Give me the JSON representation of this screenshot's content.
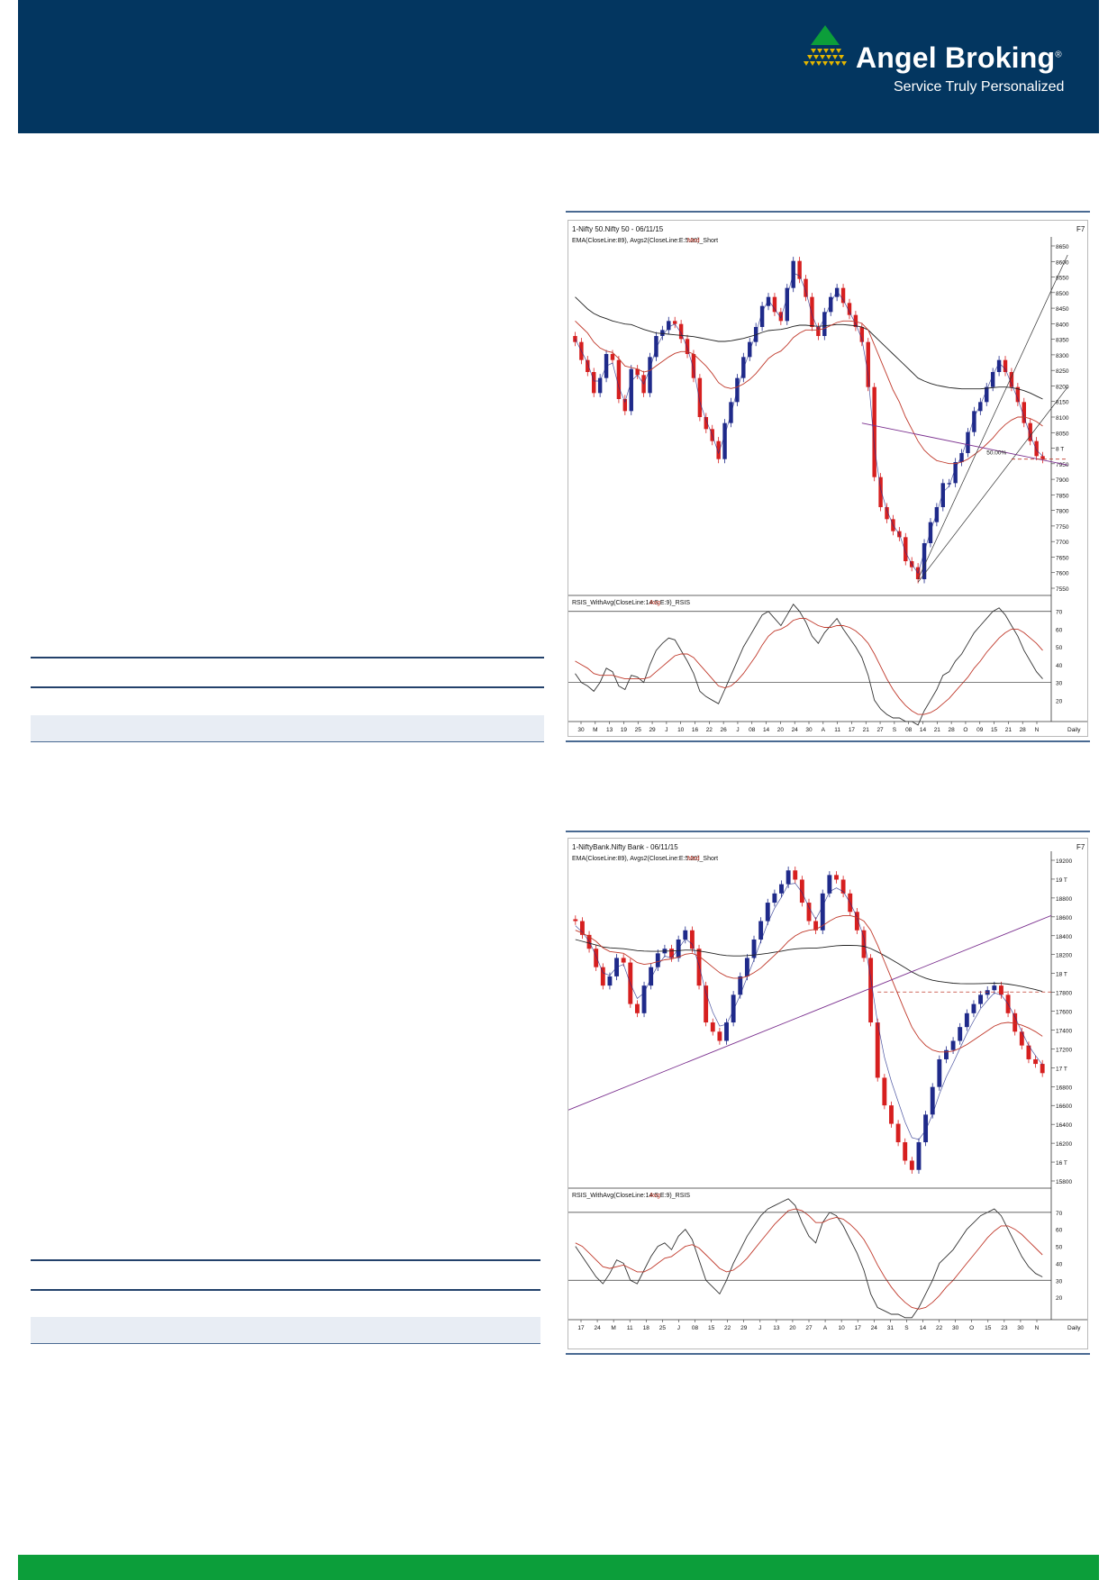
{
  "brand": {
    "name": "Angel Broking",
    "registered": "®",
    "tagline": "Service Truly Personalized",
    "header_color": "#033660",
    "footer_color": "#0c9e3a",
    "logo_icon": "pyramid-logo-icon"
  },
  "charts": [
    {
      "id": "nifty",
      "title": "1-Nifty 50.Nifty 50 - 06/11/15",
      "tag": "F7",
      "indicator_line": "EMA(CloseLine:89), Avgs2(CloseLine:E:5:20)_Short",
      "indicator_med": "Med",
      "rsi_label": "RSIS_WithAvg(CloseLine:14:S:E:9)_RSIS",
      "rsi_avg": "Avg",
      "fib_label": "50.00%",
      "period": "Daily",
      "x_ticks": [
        "30",
        "M",
        "13",
        "19",
        "25",
        "29",
        "J",
        "10",
        "16",
        "22",
        "26",
        "J",
        "08",
        "14",
        "20",
        "24",
        "30",
        "A",
        "11",
        "17",
        "21",
        "27",
        "S",
        "08",
        "14",
        "21",
        "28",
        "O",
        "09",
        "15",
        "21",
        "28",
        "N"
      ],
      "y_ticks": [
        "8650",
        "8600",
        "8550",
        "8500",
        "8450",
        "8400",
        "8350",
        "8300",
        "8250",
        "8200",
        "8150",
        "8100",
        "8050",
        "8 T",
        "7950",
        "7900",
        "7850",
        "7800",
        "7750",
        "7700",
        "7650",
        "7600",
        "7550"
      ],
      "rsi_ticks": [
        "70",
        "60",
        "50",
        "40",
        "30",
        "20"
      ]
    },
    {
      "id": "bank",
      "title": "1-NiftyBank.Nifty Bank - 06/11/15",
      "tag": "F7",
      "indicator_line": "EMA(CloseLine:89), Avgs2(CloseLine:E:5:20)_Short",
      "indicator_med": "Med",
      "rsi_label": "RSIS_WithAvg(CloseLine:14:S:E:9)_RSIS",
      "rsi_avg": "Avg",
      "period": "Daily",
      "x_ticks": [
        "17",
        "24",
        "M",
        "11",
        "18",
        "25",
        "J",
        "08",
        "15",
        "22",
        "29",
        "J",
        "13",
        "20",
        "27",
        "A",
        "10",
        "17",
        "24",
        "31",
        "S",
        "14",
        "22",
        "30",
        "O",
        "15",
        "23",
        "30",
        "N"
      ],
      "y_ticks": [
        "19200",
        "19 T",
        "18800",
        "18600",
        "18400",
        "18200",
        "18 T",
        "17800",
        "17600",
        "17400",
        "17200",
        "17 T",
        "16800",
        "16600",
        "16400",
        "16200",
        "16 T",
        "15800"
      ],
      "rsi_ticks": [
        "70",
        "60",
        "50",
        "40",
        "30",
        "20"
      ]
    }
  ],
  "chart_data": [
    {
      "type": "candlestick",
      "title": "1-Nifty 50.Nifty 50 - 06/11/15",
      "ylim": [
        7530,
        8670
      ],
      "rsi_ylim": [
        10,
        80
      ],
      "close": [
        8350,
        8290,
        8250,
        8180,
        8230,
        8310,
        8290,
        8160,
        8120,
        8260,
        8240,
        8180,
        8300,
        8370,
        8390,
        8420,
        8410,
        8360,
        8310,
        8230,
        8100,
        8060,
        8020,
        7960,
        8080,
        8150,
        8230,
        8300,
        8350,
        8400,
        8470,
        8500,
        8450,
        8420,
        8530,
        8620,
        8560,
        8500,
        8400,
        8370,
        8450,
        8500,
        8530,
        8480,
        8440,
        8400,
        8350,
        8200,
        7900,
        7800,
        7760,
        7720,
        7700,
        7620,
        7600,
        7560,
        7680,
        7750,
        7800,
        7880,
        7880,
        7950,
        7980,
        8050,
        8120,
        8150,
        8200,
        8250,
        8290,
        8250,
        8200,
        8150,
        8080,
        8020,
        7970,
        7960
      ],
      "series": [
        {
          "name": "EMA(89)",
          "values": [
            8500,
            8480,
            8460,
            8445,
            8435,
            8428,
            8420,
            8415,
            8410,
            8408,
            8400,
            8392,
            8386,
            8380,
            8378,
            8376,
            8374,
            8372,
            8370,
            8368,
            8364,
            8360,
            8356,
            8352,
            8352,
            8354,
            8358,
            8362,
            8368,
            8374,
            8382,
            8388,
            8390,
            8392,
            8396,
            8402,
            8406,
            8406,
            8404,
            8402,
            8404,
            8406,
            8408,
            8408,
            8406,
            8404,
            8400,
            8390,
            8370,
            8350,
            8330,
            8310,
            8290,
            8270,
            8250,
            8230,
            8220,
            8212,
            8206,
            8202,
            8198,
            8196,
            8194,
            8194,
            8194,
            8194,
            8196,
            8198,
            8200,
            8200,
            8198,
            8194,
            8188,
            8180,
            8170,
            8160
          ]
        },
        {
          "name": "EMA(5)",
          "values": [
            8360,
            8320,
            8280,
            8220,
            8220,
            8270,
            8280,
            8200,
            8150,
            8220,
            8240,
            8210,
            8260,
            8330,
            8370,
            8400,
            8410,
            8380,
            8330,
            8260,
            8150,
            8090,
            8040,
            7980,
            8040,
            8110,
            8190,
            8260,
            8320,
            8380,
            8450,
            8490,
            8460,
            8430,
            8500,
            8580,
            8570,
            8520,
            8440,
            8390,
            8430,
            8480,
            8520,
            8490,
            8450,
            8410,
            8360,
            8240,
            8000,
            7860,
            7790,
            7740,
            7710,
            7650,
            7610,
            7580,
            7650,
            7720,
            7780,
            7850,
            7870,
            7930,
            7970,
            8030,
            8100,
            8140,
            8190,
            8240,
            8280,
            8260,
            8210,
            8160,
            8100,
            8040,
            7990,
            7970
          ]
        },
        {
          "name": "EMA(20)",
          "values": [
            8420,
            8400,
            8380,
            8350,
            8330,
            8320,
            8315,
            8295,
            8270,
            8265,
            8260,
            8250,
            8255,
            8270,
            8285,
            8300,
            8312,
            8318,
            8318,
            8310,
            8290,
            8270,
            8245,
            8215,
            8200,
            8195,
            8200,
            8210,
            8225,
            8245,
            8270,
            8295,
            8310,
            8320,
            8340,
            8365,
            8380,
            8390,
            8390,
            8390,
            8395,
            8405,
            8415,
            8420,
            8420,
            8418,
            8412,
            8390,
            8340,
            8290,
            8240,
            8190,
            8150,
            8100,
            8060,
            8020,
            7990,
            7970,
            7955,
            7950,
            7945,
            7945,
            7950,
            7960,
            7975,
            7990,
            8010,
            8030,
            8055,
            8075,
            8090,
            8100,
            8100,
            8095,
            8085,
            8070
          ]
        },
        {
          "name": "RSI",
          "values": [
            35,
            30,
            28,
            25,
            30,
            38,
            36,
            28,
            26,
            34,
            33,
            30,
            40,
            48,
            52,
            55,
            54,
            48,
            42,
            35,
            25,
            22,
            20,
            18,
            26,
            34,
            42,
            50,
            56,
            62,
            68,
            70,
            66,
            62,
            68,
            74,
            70,
            64,
            56,
            52,
            58,
            62,
            66,
            60,
            55,
            50,
            44,
            34,
            20,
            15,
            12,
            10,
            10,
            8,
            8,
            6,
            14,
            20,
            26,
            34,
            36,
            42,
            46,
            52,
            58,
            62,
            66,
            70,
            72,
            68,
            62,
            56,
            48,
            42,
            36,
            32
          ]
        },
        {
          "name": "RSI Avg",
          "values": [
            42,
            40,
            38,
            35,
            34,
            34,
            34,
            33,
            32,
            32,
            32,
            32,
            33,
            36,
            39,
            42,
            45,
            46,
            46,
            44,
            40,
            36,
            32,
            28,
            27,
            28,
            31,
            35,
            40,
            45,
            51,
            56,
            59,
            60,
            62,
            65,
            66,
            66,
            64,
            62,
            61,
            61,
            62,
            62,
            61,
            59,
            56,
            52,
            46,
            39,
            32,
            26,
            21,
            17,
            14,
            12,
            12,
            13,
            15,
            18,
            21,
            25,
            29,
            33,
            38,
            42,
            47,
            51,
            55,
            58,
            60,
            60,
            58,
            55,
            52,
            48
          ]
        }
      ]
    },
    {
      "type": "candlestick",
      "title": "1-NiftyBank.Nifty Bank - 06/11/15",
      "ylim": [
        15780,
        19260
      ],
      "rsi_ylim": [
        10,
        80
      ],
      "close": [
        18600,
        18450,
        18300,
        18100,
        17900,
        18000,
        18200,
        18150,
        17700,
        17600,
        17900,
        18100,
        18250,
        18300,
        18200,
        18400,
        18500,
        18300,
        17900,
        17500,
        17400,
        17300,
        17500,
        17800,
        18000,
        18200,
        18400,
        18600,
        18800,
        18900,
        19000,
        19150,
        19050,
        18800,
        18600,
        18500,
        18900,
        19100,
        19050,
        18900,
        18700,
        18500,
        18200,
        17500,
        16900,
        16600,
        16400,
        16200,
        16000,
        15900,
        16200,
        16500,
        16800,
        17100,
        17200,
        17300,
        17450,
        17600,
        17700,
        17800,
        17850,
        17900,
        17800,
        17600,
        17400,
        17250,
        17100,
        17050,
        16950
      ],
      "series": [
        {
          "name": "EMA(89)",
          "values": [
            18400,
            18380,
            18360,
            18340,
            18320,
            18310,
            18305,
            18300,
            18290,
            18280,
            18275,
            18272,
            18272,
            18275,
            18276,
            18280,
            18285,
            18284,
            18276,
            18264,
            18250,
            18236,
            18226,
            18222,
            18222,
            18226,
            18232,
            18240,
            18250,
            18262,
            18274,
            18288,
            18298,
            18304,
            18306,
            18306,
            18314,
            18324,
            18332,
            18336,
            18336,
            18334,
            18326,
            18302,
            18266,
            18226,
            18184,
            18140,
            18094,
            18048,
            18010,
            17980,
            17958,
            17944,
            17934,
            17926,
            17922,
            17920,
            17920,
            17922,
            17924,
            17926,
            17924,
            17916,
            17904,
            17890,
            17874,
            17856,
            17836
          ]
        },
        {
          "name": "EMA(5)",
          "values": [
            18550,
            18480,
            18380,
            18220,
            18040,
            18010,
            18100,
            18130,
            17920,
            17760,
            17820,
            17980,
            18120,
            18220,
            18200,
            18300,
            18410,
            18350,
            18120,
            17820,
            17610,
            17460,
            17480,
            17630,
            17800,
            17990,
            18180,
            18380,
            18580,
            18740,
            18860,
            19000,
            19010,
            18910,
            18750,
            18620,
            18760,
            18920,
            18960,
            18920,
            18800,
            18640,
            18420,
            17980,
            17500,
            17120,
            16860,
            16640,
            16420,
            16250,
            16230,
            16330,
            16500,
            16720,
            16910,
            17060,
            17220,
            17380,
            17520,
            17650,
            17740,
            17820,
            17800,
            17700,
            17560,
            17400,
            17250,
            17140,
            17040
          ]
        },
        {
          "name": "EMA(20)",
          "values": [
            18500,
            18470,
            18430,
            18380,
            18310,
            18270,
            18260,
            18250,
            18200,
            18150,
            18130,
            18140,
            18160,
            18180,
            18190,
            18210,
            18240,
            18250,
            18220,
            18160,
            18100,
            18040,
            18000,
            17980,
            17980,
            18000,
            18040,
            18090,
            18160,
            18230,
            18300,
            18380,
            18440,
            18480,
            18500,
            18510,
            18550,
            18600,
            18640,
            18660,
            18660,
            18640,
            18600,
            18500,
            18340,
            18160,
            17980,
            17800,
            17620,
            17450,
            17330,
            17250,
            17200,
            17180,
            17180,
            17190,
            17220,
            17260,
            17310,
            17360,
            17410,
            17460,
            17490,
            17500,
            17490,
            17470,
            17440,
            17400,
            17350
          ]
        },
        {
          "name": "RSI",
          "values": [
            50,
            44,
            38,
            32,
            28,
            34,
            42,
            40,
            30,
            28,
            36,
            44,
            50,
            52,
            48,
            56,
            60,
            54,
            42,
            30,
            26,
            22,
            30,
            40,
            48,
            56,
            62,
            68,
            72,
            74,
            76,
            78,
            74,
            64,
            56,
            52,
            64,
            70,
            68,
            62,
            54,
            46,
            36,
            22,
            14,
            12,
            10,
            10,
            8,
            8,
            14,
            22,
            30,
            40,
            44,
            48,
            54,
            60,
            64,
            68,
            70,
            72,
            68,
            60,
            52,
            44,
            38,
            34,
            32
          ]
        },
        {
          "name": "RSI Avg",
          "values": [
            52,
            50,
            46,
            42,
            38,
            37,
            38,
            39,
            37,
            35,
            35,
            37,
            40,
            43,
            44,
            47,
            50,
            51,
            49,
            45,
            41,
            37,
            35,
            36,
            39,
            43,
            48,
            53,
            58,
            63,
            67,
            71,
            72,
            71,
            68,
            64,
            64,
            66,
            67,
            66,
            63,
            59,
            54,
            47,
            39,
            32,
            26,
            21,
            17,
            14,
            13,
            14,
            17,
            21,
            26,
            30,
            35,
            40,
            45,
            50,
            55,
            59,
            62,
            62,
            60,
            57,
            53,
            49,
            45
          ]
        }
      ]
    }
  ]
}
